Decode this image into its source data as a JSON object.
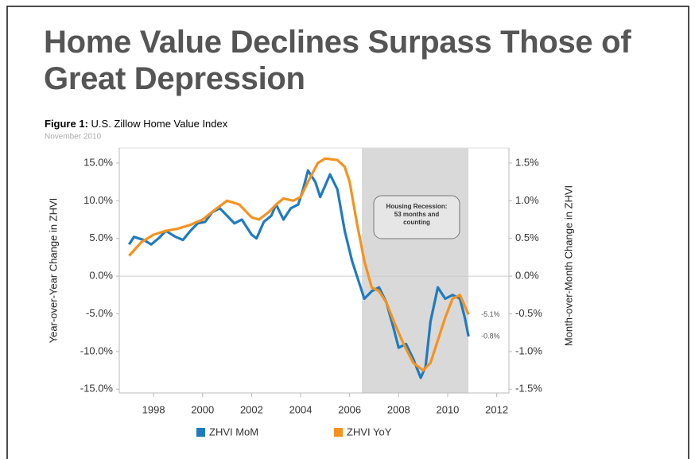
{
  "header": {
    "title": "Home Value Declines Surpass Those of Great Depression"
  },
  "chart_data": {
    "type": "line",
    "figure_label": "Figure 1:",
    "title": "U.S. Zillow Home Value Index",
    "subtitle": "November 2010",
    "y_label": "Year-over-Year Change in ZHVI",
    "y2_label": "Month-over-Month Change in ZHVI",
    "annotation": [
      "Housing Recession:",
      "53 months and",
      "counting"
    ],
    "recession_span": [
      2006.5,
      2010.85
    ],
    "xlim": [
      1996.6,
      2012.5
    ],
    "xticks": [
      1998,
      2000,
      2002,
      2004,
      2006,
      2008,
      2010,
      2012
    ],
    "ylim": [
      -15.5,
      17
    ],
    "yticks": [
      {
        "value": 15,
        "label": "15.0%"
      },
      {
        "value": 10,
        "label": "10.0%"
      },
      {
        "value": 5,
        "label": "5.0%"
      },
      {
        "value": 0,
        "label": "0.0%"
      },
      {
        "value": -5,
        "label": "-5.0%"
      },
      {
        "value": -10,
        "label": "-10.0%"
      },
      {
        "value": -15,
        "label": "-15.0%"
      }
    ],
    "y2lim": [
      -1.55,
      1.7
    ],
    "y2ticks": [
      {
        "value": 1.5,
        "label": "1.5%"
      },
      {
        "value": 1,
        "label": "1.0%"
      },
      {
        "value": 0.5,
        "label": "0.5%"
      },
      {
        "value": 0,
        "label": "0.0%"
      },
      {
        "value": -0.5,
        "label": "-0.5%"
      },
      {
        "value": -1,
        "label": "-1.0%"
      },
      {
        "value": -1.5,
        "label": "-1.5%"
      }
    ],
    "grid": false,
    "series": [
      {
        "name": "ZHVI MoM",
        "color": "#1f7bbf",
        "axis": "y2",
        "x": [
          1997.0,
          1997.2,
          1997.6,
          1997.9,
          1998.2,
          1998.5,
          1998.9,
          1999.2,
          1999.5,
          1999.8,
          2000.1,
          2000.4,
          2000.7,
          2001.0,
          2001.3,
          2001.6,
          2002.0,
          2002.2,
          2002.5,
          2002.8,
          2003.0,
          2003.3,
          2003.6,
          2003.9,
          2004.1,
          2004.3,
          2004.6,
          2004.8,
          2005.0,
          2005.2,
          2005.5,
          2005.8,
          2006.1,
          2006.4,
          2006.6,
          2006.9,
          2007.2,
          2007.5,
          2007.8,
          2008.0,
          2008.3,
          2008.6,
          2008.9,
          2009.1,
          2009.3,
          2009.6,
          2009.9,
          2010.2,
          2010.5,
          2010.7,
          2010.85
        ],
        "values": [
          0.42,
          0.52,
          0.48,
          0.42,
          0.5,
          0.6,
          0.52,
          0.48,
          0.6,
          0.7,
          0.72,
          0.85,
          0.9,
          0.8,
          0.7,
          0.75,
          0.55,
          0.5,
          0.72,
          0.8,
          0.95,
          0.75,
          0.9,
          0.95,
          1.15,
          1.4,
          1.25,
          1.05,
          1.2,
          1.35,
          1.15,
          0.6,
          0.2,
          -0.1,
          -0.3,
          -0.2,
          -0.15,
          -0.35,
          -0.7,
          -0.95,
          -0.9,
          -1.1,
          -1.35,
          -1.2,
          -0.6,
          -0.15,
          -0.3,
          -0.25,
          -0.3,
          -0.55,
          -0.8
        ],
        "value_labels": [
          null,
          null,
          null,
          null,
          null,
          null,
          null,
          null,
          null,
          null,
          null,
          null,
          null,
          null,
          null,
          null,
          null,
          null,
          null,
          null,
          null,
          null,
          null,
          null,
          null,
          null,
          null,
          null,
          null,
          null,
          null,
          null,
          null,
          null,
          null,
          null,
          null,
          null,
          null,
          null,
          null,
          null,
          null,
          null,
          null,
          null,
          null,
          null,
          null,
          null,
          "-0.8%"
        ]
      },
      {
        "name": "ZHVI YoY",
        "color": "#f5921e",
        "axis": "y",
        "x": [
          1997.0,
          1997.5,
          1998.0,
          1998.5,
          1999.0,
          1999.5,
          2000.0,
          2000.5,
          2001.0,
          2001.5,
          2002.0,
          2002.3,
          2002.7,
          2003.0,
          2003.3,
          2003.7,
          2004.0,
          2004.3,
          2004.7,
          2005.0,
          2005.5,
          2005.8,
          2006.0,
          2006.3,
          2006.6,
          2006.9,
          2007.2,
          2007.5,
          2007.8,
          2008.2,
          2008.6,
          2009.0,
          2009.3,
          2009.6,
          2009.9,
          2010.2,
          2010.5,
          2010.85
        ],
        "values": [
          2.7,
          4.5,
          5.5,
          6.0,
          6.3,
          6.8,
          7.5,
          8.8,
          10.0,
          9.5,
          7.8,
          7.5,
          8.5,
          9.5,
          10.3,
          10.0,
          10.5,
          12.5,
          15.0,
          15.6,
          15.4,
          14.5,
          12.5,
          7.0,
          2.0,
          -1.5,
          -2.0,
          -3.5,
          -6.0,
          -9.0,
          -11.5,
          -12.5,
          -11.5,
          -8.5,
          -5.5,
          -3.0,
          -2.5,
          -5.1
        ],
        "value_labels": [
          null,
          null,
          null,
          null,
          null,
          null,
          null,
          null,
          null,
          null,
          null,
          null,
          null,
          null,
          null,
          null,
          null,
          null,
          null,
          null,
          null,
          null,
          null,
          null,
          null,
          null,
          null,
          null,
          null,
          null,
          null,
          null,
          null,
          null,
          null,
          null,
          null,
          "-5.1%"
        ]
      }
    ]
  }
}
